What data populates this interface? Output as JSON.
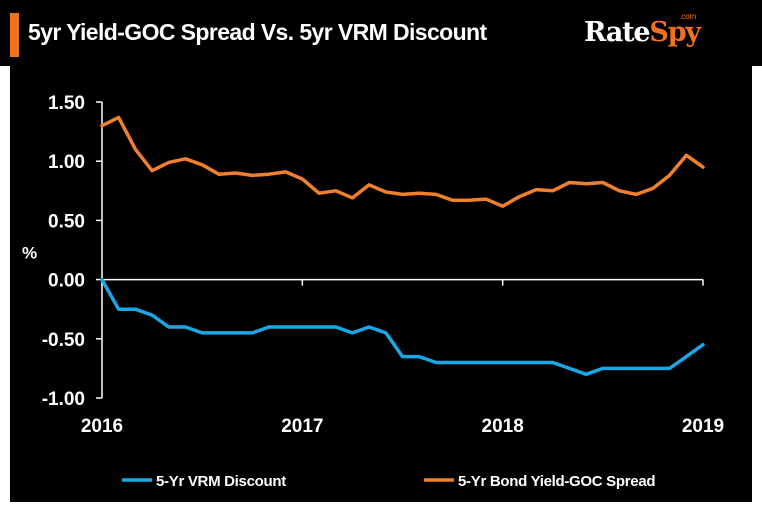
{
  "header": {
    "title": "5yr Yield-GOC Spread Vs. 5yr VRM Discount",
    "logo_main": "Rate",
    "logo_accent": "Spy",
    "logo_suffix": ".com"
  },
  "colors": {
    "background": "#000000",
    "accent": "#f2711c",
    "vrm_series": "#1aa7e6",
    "spread_series": "#f07f2e",
    "text": "#ffffff"
  },
  "chart_data": {
    "type": "line",
    "title": "5yr Yield-GOC Spread Vs. 5yr VRM Discount",
    "ylabel": "%",
    "ylim": [
      -1.0,
      1.5
    ],
    "xlim": [
      2016,
      2019
    ],
    "yticks": [
      1.5,
      1.0,
      0.5,
      0.0,
      -0.5,
      -1.0
    ],
    "ytick_labels": [
      "1.50",
      "1.00",
      "0.50",
      "0.00",
      "-0.50",
      "-1.00"
    ],
    "xticks": [
      2016,
      2017,
      2018,
      2019
    ],
    "xtick_labels": [
      "2016",
      "2017",
      "2018",
      "2019"
    ],
    "grid": false,
    "legend_position": "bottom",
    "series": [
      {
        "name": "5-Yr VRM Discount",
        "color": "#1aa7e6",
        "x": [
          2016.0,
          2016.083,
          2016.167,
          2016.25,
          2016.333,
          2016.417,
          2016.5,
          2016.583,
          2016.667,
          2016.75,
          2016.833,
          2016.917,
          2017.0,
          2017.083,
          2017.167,
          2017.25,
          2017.333,
          2017.417,
          2017.5,
          2017.583,
          2017.667,
          2017.75,
          2017.833,
          2017.917,
          2018.0,
          2018.083,
          2018.167,
          2018.25,
          2018.333,
          2018.417,
          2018.5,
          2018.583,
          2018.667,
          2018.75,
          2018.833,
          2018.917,
          2019.0
        ],
        "y": [
          0.0,
          -0.25,
          -0.25,
          -0.3,
          -0.4,
          -0.4,
          -0.45,
          -0.45,
          -0.45,
          -0.45,
          -0.4,
          -0.4,
          -0.4,
          -0.4,
          -0.4,
          -0.45,
          -0.4,
          -0.45,
          -0.65,
          -0.65,
          -0.7,
          -0.7,
          -0.7,
          -0.7,
          -0.7,
          -0.7,
          -0.7,
          -0.7,
          -0.75,
          -0.8,
          -0.75,
          -0.75,
          -0.75,
          -0.75,
          -0.75,
          -0.65,
          -0.55
        ]
      },
      {
        "name": "5-Yr Bond Yield-GOC Spread",
        "color": "#f07f2e",
        "x": [
          2016.0,
          2016.083,
          2016.167,
          2016.25,
          2016.333,
          2016.417,
          2016.5,
          2016.583,
          2016.667,
          2016.75,
          2016.833,
          2016.917,
          2017.0,
          2017.083,
          2017.167,
          2017.25,
          2017.333,
          2017.417,
          2017.5,
          2017.583,
          2017.667,
          2017.75,
          2017.833,
          2017.917,
          2018.0,
          2018.083,
          2018.167,
          2018.25,
          2018.333,
          2018.417,
          2018.5,
          2018.583,
          2018.667,
          2018.75,
          2018.833,
          2018.917,
          2019.0
        ],
        "y": [
          1.3,
          1.37,
          1.1,
          0.92,
          0.99,
          1.02,
          0.97,
          0.89,
          0.9,
          0.88,
          0.89,
          0.91,
          0.85,
          0.73,
          0.75,
          0.69,
          0.8,
          0.74,
          0.72,
          0.73,
          0.72,
          0.67,
          0.67,
          0.68,
          0.62,
          0.7,
          0.76,
          0.75,
          0.82,
          0.81,
          0.82,
          0.75,
          0.72,
          0.77,
          0.88,
          1.05,
          0.95
        ]
      }
    ]
  }
}
